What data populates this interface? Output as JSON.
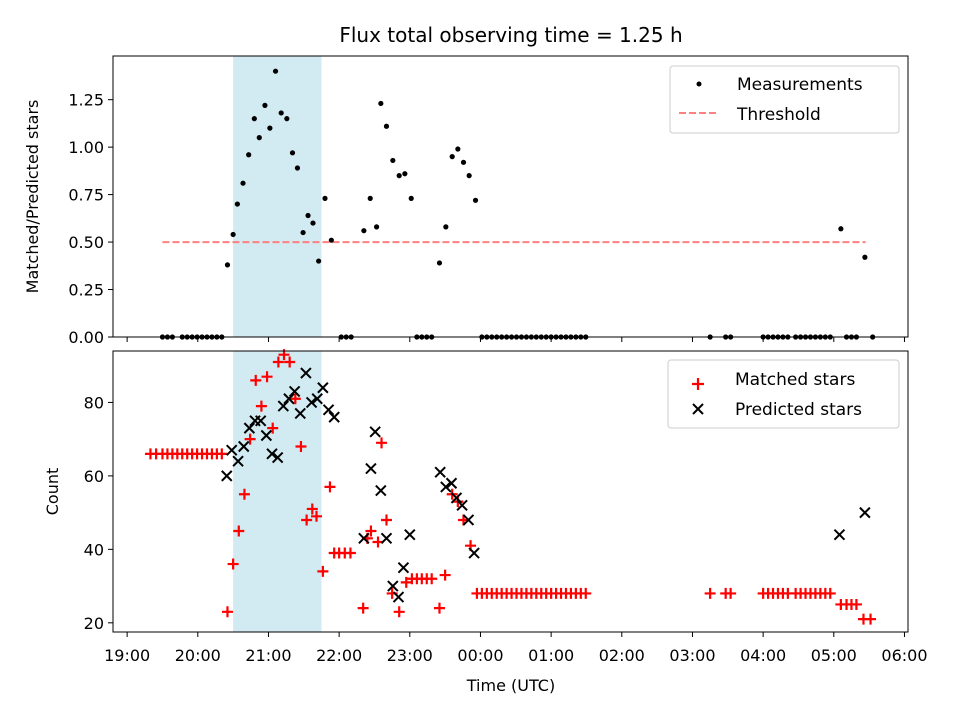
{
  "chart_data": {
    "title": "Flux total observing time = 1.25 h",
    "xlabel": "Time (UTC)",
    "x_unit": "hours since 19:00 UTC",
    "xlim": [
      -0.2,
      11.05
    ],
    "x_ticks": [
      {
        "value": 0,
        "label": "19:00"
      },
      {
        "value": 1,
        "label": "20:00"
      },
      {
        "value": 2,
        "label": "21:00"
      },
      {
        "value": 3,
        "label": "22:00"
      },
      {
        "value": 4,
        "label": "23:00"
      },
      {
        "value": 5,
        "label": "00:00"
      },
      {
        "value": 6,
        "label": "01:00"
      },
      {
        "value": 7,
        "label": "02:00"
      },
      {
        "value": 8,
        "label": "03:00"
      },
      {
        "value": 9,
        "label": "04:00"
      },
      {
        "value": 10,
        "label": "05:00"
      },
      {
        "value": 11,
        "label": "06:00"
      }
    ],
    "highlight_span": [
      1.5,
      2.75
    ],
    "highlight_color": "#add8e6",
    "top": {
      "type": "scatter",
      "ylabel": "Matched/Predicted stars",
      "ylim": [
        0,
        1.48
      ],
      "y_ticks": [
        "0.00",
        "0.25",
        "0.50",
        "0.75",
        "1.00",
        "1.25"
      ],
      "legend": {
        "position": "top-right",
        "entries": [
          "Measurements",
          "Threshold"
        ]
      },
      "threshold": {
        "value": 0.5,
        "x_range": [
          0.5,
          10.45
        ],
        "color": "#ff8080"
      },
      "measurements": [
        [
          0.5,
          0
        ],
        [
          0.57,
          0
        ],
        [
          0.64,
          0
        ],
        [
          0.78,
          0
        ],
        [
          0.85,
          0
        ],
        [
          0.92,
          0
        ],
        [
          0.99,
          0
        ],
        [
          1.06,
          0
        ],
        [
          1.13,
          0
        ],
        [
          1.2,
          0
        ],
        [
          1.27,
          0
        ],
        [
          1.34,
          0
        ],
        [
          1.42,
          0.38
        ],
        [
          1.5,
          0.54
        ],
        [
          1.56,
          0.7
        ],
        [
          1.64,
          0.81
        ],
        [
          1.72,
          0.96
        ],
        [
          1.8,
          1.15
        ],
        [
          1.87,
          1.05
        ],
        [
          1.95,
          1.22
        ],
        [
          2.02,
          1.1
        ],
        [
          2.1,
          1.4
        ],
        [
          2.18,
          1.18
        ],
        [
          2.26,
          1.15
        ],
        [
          2.34,
          0.97
        ],
        [
          2.41,
          0.89
        ],
        [
          2.49,
          0.55
        ],
        [
          2.56,
          0.64
        ],
        [
          2.63,
          0.6
        ],
        [
          2.71,
          0.4
        ],
        [
          2.8,
          0.73
        ],
        [
          2.89,
          0.51
        ],
        [
          3.03,
          0
        ],
        [
          3.1,
          0
        ],
        [
          3.17,
          0
        ],
        [
          3.35,
          0.56
        ],
        [
          3.44,
          0.73
        ],
        [
          3.53,
          0.58
        ],
        [
          3.59,
          1.23
        ],
        [
          3.67,
          1.11
        ],
        [
          3.76,
          0.93
        ],
        [
          3.85,
          0.85
        ],
        [
          3.93,
          0.86
        ],
        [
          4.02,
          0.73
        ],
        [
          4.1,
          0
        ],
        [
          4.17,
          0
        ],
        [
          4.24,
          0
        ],
        [
          4.31,
          0
        ],
        [
          4.42,
          0.39
        ],
        [
          4.51,
          0.58
        ],
        [
          4.6,
          0.95
        ],
        [
          4.68,
          0.99
        ],
        [
          4.76,
          0.92
        ],
        [
          4.84,
          0.85
        ],
        [
          4.93,
          0.72
        ],
        [
          5.02,
          0
        ],
        [
          5.09,
          0
        ],
        [
          5.16,
          0
        ],
        [
          5.23,
          0
        ],
        [
          5.3,
          0
        ],
        [
          5.37,
          0
        ],
        [
          5.44,
          0
        ],
        [
          5.51,
          0
        ],
        [
          5.58,
          0
        ],
        [
          5.65,
          0
        ],
        [
          5.72,
          0
        ],
        [
          5.79,
          0
        ],
        [
          5.86,
          0
        ],
        [
          5.93,
          0
        ],
        [
          6.0,
          0
        ],
        [
          6.07,
          0
        ],
        [
          6.14,
          0
        ],
        [
          6.21,
          0
        ],
        [
          6.28,
          0
        ],
        [
          6.35,
          0
        ],
        [
          6.42,
          0
        ],
        [
          6.49,
          0
        ],
        [
          8.25,
          0
        ],
        [
          8.47,
          0
        ],
        [
          8.54,
          0
        ],
        [
          9.0,
          0
        ],
        [
          9.07,
          0
        ],
        [
          9.14,
          0
        ],
        [
          9.21,
          0
        ],
        [
          9.28,
          0
        ],
        [
          9.35,
          0
        ],
        [
          9.46,
          0
        ],
        [
          9.53,
          0
        ],
        [
          9.6,
          0
        ],
        [
          9.67,
          0
        ],
        [
          9.74,
          0
        ],
        [
          9.81,
          0
        ],
        [
          9.88,
          0
        ],
        [
          9.95,
          0
        ],
        [
          10.1,
          0.57
        ],
        [
          10.18,
          0
        ],
        [
          10.25,
          0
        ],
        [
          10.32,
          0
        ],
        [
          10.44,
          0.42
        ],
        [
          10.55,
          0
        ]
      ]
    },
    "bottom": {
      "type": "scatter",
      "ylabel": "Count",
      "ylim": [
        17.5,
        94
      ],
      "y_ticks": [
        "20",
        "40",
        "60",
        "80"
      ],
      "legend": {
        "position": "top-right",
        "entries": [
          "Matched stars",
          "Predicted stars"
        ]
      },
      "matched_color": "#ff0000",
      "predicted_color": "#000000",
      "matched": [
        [
          0.33,
          66
        ],
        [
          0.41,
          66
        ],
        [
          0.5,
          66
        ],
        [
          0.57,
          66
        ],
        [
          0.64,
          66
        ],
        [
          0.71,
          66
        ],
        [
          0.78,
          66
        ],
        [
          0.85,
          66
        ],
        [
          0.92,
          66
        ],
        [
          0.99,
          66
        ],
        [
          1.06,
          66
        ],
        [
          1.13,
          66
        ],
        [
          1.2,
          66
        ],
        [
          1.27,
          66
        ],
        [
          1.34,
          66
        ],
        [
          1.42,
          23
        ],
        [
          1.5,
          36
        ],
        [
          1.58,
          45
        ],
        [
          1.66,
          55
        ],
        [
          1.74,
          70
        ],
        [
          1.82,
          86
        ],
        [
          1.9,
          79
        ],
        [
          1.98,
          87
        ],
        [
          2.06,
          73
        ],
        [
          2.14,
          91
        ],
        [
          2.22,
          93
        ],
        [
          2.3,
          91
        ],
        [
          2.38,
          81
        ],
        [
          2.46,
          68
        ],
        [
          2.54,
          48
        ],
        [
          2.62,
          51
        ],
        [
          2.68,
          49
        ],
        [
          2.77,
          34
        ],
        [
          2.87,
          57
        ],
        [
          2.93,
          39
        ],
        [
          3.0,
          39
        ],
        [
          3.08,
          39
        ],
        [
          3.16,
          39
        ],
        [
          3.34,
          24
        ],
        [
          3.4,
          43
        ],
        [
          3.45,
          45
        ],
        [
          3.55,
          42
        ],
        [
          3.6,
          69
        ],
        [
          3.67,
          48
        ],
        [
          3.75,
          28
        ],
        [
          3.85,
          23
        ],
        [
          3.95,
          31
        ],
        [
          4.03,
          32
        ],
        [
          4.1,
          32
        ],
        [
          4.17,
          32
        ],
        [
          4.24,
          32
        ],
        [
          4.31,
          32
        ],
        [
          4.42,
          24
        ],
        [
          4.5,
          33
        ],
        [
          4.6,
          55
        ],
        [
          4.68,
          53
        ],
        [
          4.76,
          48
        ],
        [
          4.86,
          41
        ],
        [
          4.95,
          28
        ],
        [
          5.02,
          28
        ],
        [
          5.09,
          28
        ],
        [
          5.16,
          28
        ],
        [
          5.23,
          28
        ],
        [
          5.3,
          28
        ],
        [
          5.37,
          28
        ],
        [
          5.44,
          28
        ],
        [
          5.51,
          28
        ],
        [
          5.58,
          28
        ],
        [
          5.65,
          28
        ],
        [
          5.72,
          28
        ],
        [
          5.79,
          28
        ],
        [
          5.86,
          28
        ],
        [
          5.93,
          28
        ],
        [
          6.0,
          28
        ],
        [
          6.07,
          28
        ],
        [
          6.14,
          28
        ],
        [
          6.21,
          28
        ],
        [
          6.28,
          28
        ],
        [
          6.35,
          28
        ],
        [
          6.42,
          28
        ],
        [
          6.49,
          28
        ],
        [
          8.25,
          28
        ],
        [
          8.47,
          28
        ],
        [
          8.54,
          28
        ],
        [
          9.0,
          28
        ],
        [
          9.07,
          28
        ],
        [
          9.14,
          28
        ],
        [
          9.21,
          28
        ],
        [
          9.28,
          28
        ],
        [
          9.35,
          28
        ],
        [
          9.46,
          28
        ],
        [
          9.53,
          28
        ],
        [
          9.6,
          28
        ],
        [
          9.67,
          28
        ],
        [
          9.74,
          28
        ],
        [
          9.81,
          28
        ],
        [
          9.88,
          28
        ],
        [
          9.95,
          28
        ],
        [
          10.1,
          25
        ],
        [
          10.18,
          25
        ],
        [
          10.25,
          25
        ],
        [
          10.32,
          25
        ],
        [
          10.42,
          21
        ],
        [
          10.52,
          21
        ]
      ],
      "predicted": [
        [
          1.41,
          60
        ],
        [
          1.48,
          67
        ],
        [
          1.57,
          64
        ],
        [
          1.65,
          68
        ],
        [
          1.73,
          73
        ],
        [
          1.81,
          75
        ],
        [
          1.89,
          75
        ],
        [
          1.97,
          71
        ],
        [
          2.05,
          66
        ],
        [
          2.13,
          65
        ],
        [
          2.21,
          79
        ],
        [
          2.29,
          81
        ],
        [
          2.37,
          83
        ],
        [
          2.45,
          77
        ],
        [
          2.53,
          88
        ],
        [
          2.61,
          80
        ],
        [
          2.69,
          81
        ],
        [
          2.77,
          84
        ],
        [
          2.85,
          78
        ],
        [
          2.93,
          76
        ],
        [
          3.35,
          43
        ],
        [
          3.45,
          62
        ],
        [
          3.51,
          72
        ],
        [
          3.59,
          56
        ],
        [
          3.67,
          43
        ],
        [
          3.76,
          30
        ],
        [
          3.84,
          27
        ],
        [
          3.91,
          35
        ],
        [
          4.0,
          44
        ],
        [
          4.43,
          61
        ],
        [
          4.51,
          57
        ],
        [
          4.59,
          58
        ],
        [
          4.66,
          54
        ],
        [
          4.74,
          52
        ],
        [
          4.83,
          48
        ],
        [
          4.91,
          39
        ],
        [
          10.08,
          44
        ],
        [
          10.44,
          50
        ]
      ]
    }
  }
}
